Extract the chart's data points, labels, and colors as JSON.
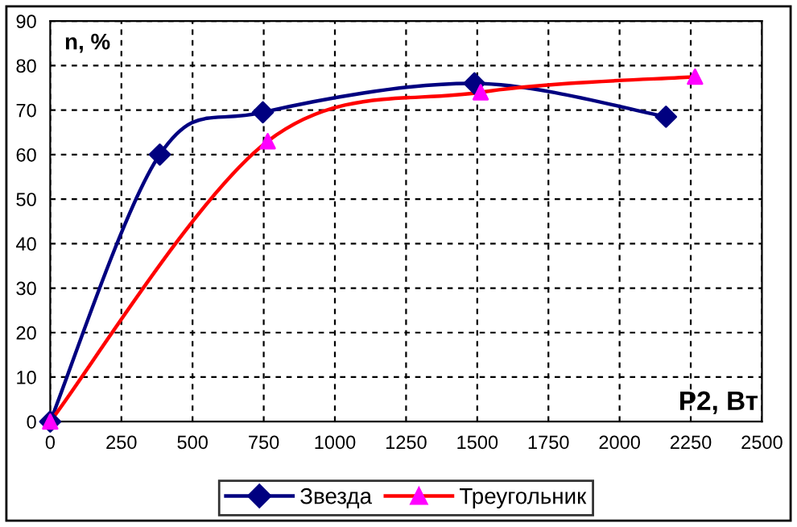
{
  "chart_data": {
    "type": "line",
    "xlabel": "P2, Вт",
    "ylabel": "n, %",
    "xlim": [
      0,
      2500
    ],
    "xticks": [
      0,
      250,
      500,
      750,
      1000,
      1250,
      1500,
      1750,
      2000,
      2250,
      2500
    ],
    "ylim": [
      0,
      90
    ],
    "yticks": [
      0,
      10,
      20,
      30,
      40,
      50,
      60,
      70,
      80,
      90
    ],
    "grid": true,
    "legend": "bottom",
    "line_style": "solid",
    "series": [
      {
        "name": "Звезда",
        "color": "#000080",
        "marker": "diamond",
        "x": [
          0,
          385,
          747,
          1490,
          2163
        ],
        "values": [
          0,
          60,
          69.5,
          76,
          68.5
        ]
      },
      {
        "name": "Треугольник",
        "color": "#ff0000",
        "colors": [
          "#ff00ff",
          "#ff00ff",
          "#ff00ff",
          "#ff00ff"
        ],
        "marker": "triangle",
        "x": [
          0,
          764,
          1512,
          2265
        ],
        "values": [
          0,
          63,
          74,
          77.5
        ]
      }
    ]
  }
}
